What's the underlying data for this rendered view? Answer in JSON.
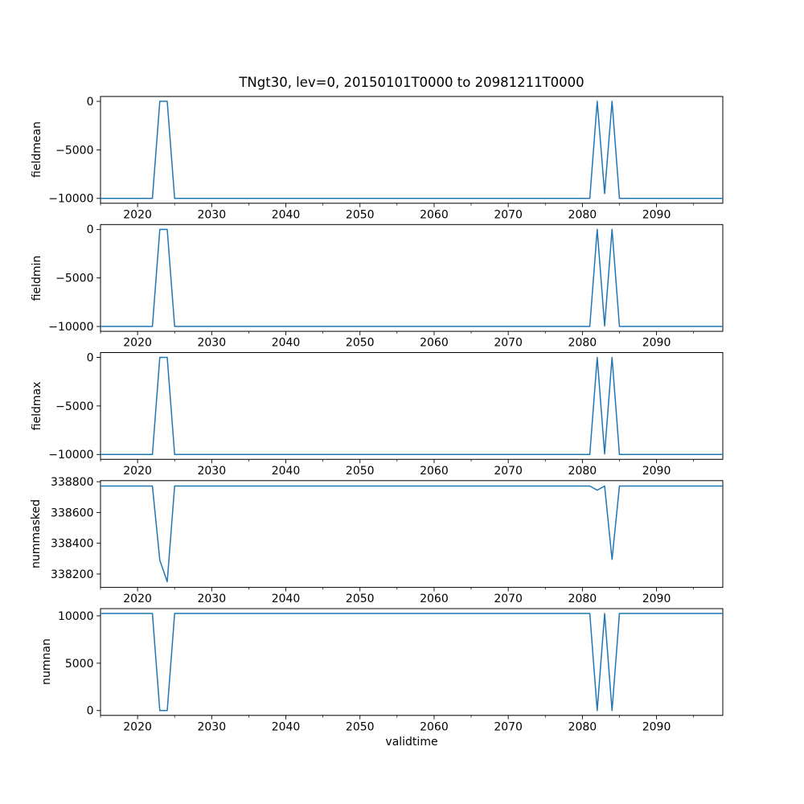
{
  "figure": {
    "title": "TNgt30, lev=0, 20150101T0000 to 20981211T0000",
    "xlabel": "validtime",
    "line_color": "#1f77b4",
    "text_color": "#000000",
    "background_color": "#ffffff"
  },
  "x_axis": {
    "label": "validtime",
    "xlim": [
      2015.0,
      2098.94
    ],
    "major_ticks": [
      2020,
      2030,
      2040,
      2050,
      2060,
      2070,
      2080,
      2090
    ],
    "major_tick_labels": [
      "2020",
      "2030",
      "2040",
      "2050",
      "2060",
      "2070",
      "2080",
      "2090"
    ],
    "minor_ticks": [
      2015,
      2025,
      2035,
      2045,
      2055,
      2065,
      2075,
      2085,
      2095
    ]
  },
  "chart_data": [
    {
      "type": "line",
      "ylabel": "fieldmean",
      "ylim": [
        -10500,
        500
      ],
      "yticks": [
        0,
        -5000,
        -10000
      ],
      "ytick_labels": [
        "0",
        "−5000",
        "−10000"
      ],
      "points": [
        [
          2015,
          -10000
        ],
        [
          2022,
          -10000
        ],
        [
          2023,
          0
        ],
        [
          2024,
          0
        ],
        [
          2025,
          -10000
        ],
        [
          2081,
          -10000
        ],
        [
          2082,
          0
        ],
        [
          2083,
          -9500
        ],
        [
          2084,
          0
        ],
        [
          2085,
          -10000
        ],
        [
          2098.94,
          -10000
        ]
      ]
    },
    {
      "type": "line",
      "ylabel": "fieldmin",
      "ylim": [
        -10500,
        500
      ],
      "yticks": [
        0,
        -5000,
        -10000
      ],
      "ytick_labels": [
        "0",
        "−5000",
        "−10000"
      ],
      "points": [
        [
          2015,
          -10000
        ],
        [
          2022,
          -10000
        ],
        [
          2023,
          0
        ],
        [
          2024,
          0
        ],
        [
          2025,
          -10000
        ],
        [
          2081,
          -10000
        ],
        [
          2082,
          0
        ],
        [
          2083,
          -9950
        ],
        [
          2084,
          0
        ],
        [
          2085,
          -10000
        ],
        [
          2098.94,
          -10000
        ]
      ]
    },
    {
      "type": "line",
      "ylabel": "fieldmax",
      "ylim": [
        -10500,
        500
      ],
      "yticks": [
        0,
        -5000,
        -10000
      ],
      "ytick_labels": [
        "0",
        "−5000",
        "−10000"
      ],
      "points": [
        [
          2015,
          -10000
        ],
        [
          2022,
          -10000
        ],
        [
          2023,
          0
        ],
        [
          2024,
          0
        ],
        [
          2025,
          -10000
        ],
        [
          2081,
          -10000
        ],
        [
          2082,
          0
        ],
        [
          2083,
          -9940
        ],
        [
          2084,
          0
        ],
        [
          2085,
          -10000
        ],
        [
          2098.94,
          -10000
        ]
      ]
    },
    {
      "type": "line",
      "ylabel": "nummasked",
      "ylim": [
        338113,
        338807
      ],
      "yticks": [
        338800,
        338600,
        338400,
        338200
      ],
      "ytick_labels": [
        "338800",
        "338600",
        "338400",
        "338200"
      ],
      "points": [
        [
          2015,
          338772
        ],
        [
          2022,
          338772
        ],
        [
          2023,
          338290
        ],
        [
          2024,
          338150
        ],
        [
          2025,
          338772
        ],
        [
          2081,
          338772
        ],
        [
          2082,
          338745
        ],
        [
          2083,
          338772
        ],
        [
          2084,
          338295
        ],
        [
          2085,
          338772
        ],
        [
          2098.94,
          338772
        ]
      ]
    },
    {
      "type": "line",
      "ylabel": "numnan",
      "ylim": [
        -513,
        10763
      ],
      "yticks": [
        10000,
        5000,
        0
      ],
      "ytick_labels": [
        "10000",
        "5000",
        "0"
      ],
      "points": [
        [
          2015,
          10250
        ],
        [
          2022,
          10250
        ],
        [
          2023,
          0
        ],
        [
          2024,
          0
        ],
        [
          2025,
          10250
        ],
        [
          2081,
          10250
        ],
        [
          2082,
          0
        ],
        [
          2083,
          10250
        ],
        [
          2084,
          0
        ],
        [
          2085,
          10250
        ],
        [
          2098.94,
          10250
        ]
      ]
    }
  ]
}
